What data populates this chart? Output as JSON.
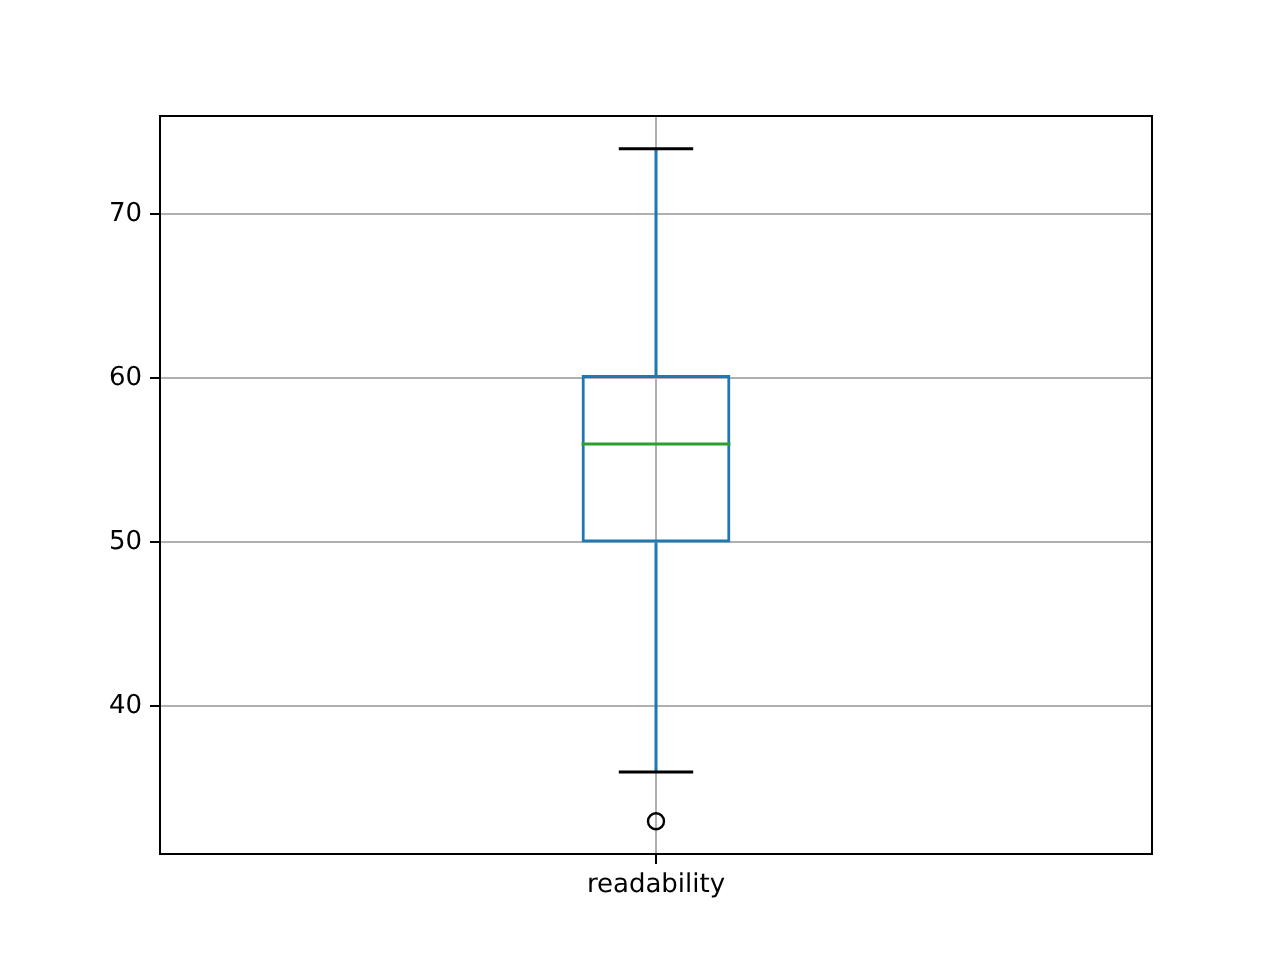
{
  "chart_data": {
    "type": "box",
    "categories": [
      "readability"
    ],
    "boxes": [
      {
        "low": 36,
        "q1": 50,
        "median": 56,
        "q3": 60.2,
        "high": 74,
        "outliers": [
          33
        ]
      }
    ],
    "color": "#1f77b4",
    "ylim": [
      31,
      76
    ],
    "yticks": [
      40,
      50,
      60,
      70
    ],
    "grid": true
  }
}
